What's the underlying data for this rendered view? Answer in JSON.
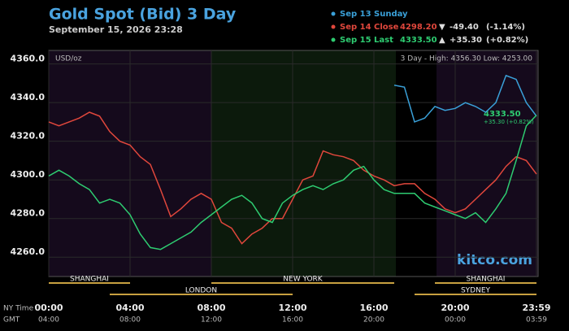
{
  "chart_data": {
    "type": "line",
    "title": "Gold Spot (Bid) 3 Day",
    "subtitle": "September 15, 2026 23:28",
    "unit": "USD/oz",
    "high_low": "3 Day - High: 4356.30  Low: 4253.00",
    "watermark": "kitco.com",
    "x_row_labels": [
      "NY Time",
      "GMT"
    ],
    "annotations": [
      "4333.50",
      "+35.30 (+0.82%)"
    ],
    "x": [
      0,
      0.5,
      1,
      1.5,
      2,
      2.5,
      3,
      3.5,
      4,
      4.5,
      5,
      5.5,
      6,
      6.5,
      7,
      7.5,
      8,
      8.5,
      9,
      9.5,
      10,
      10.5,
      11,
      11.5,
      12,
      12.5,
      13,
      13.5,
      14,
      14.5,
      15,
      15.5,
      16,
      16.5,
      17,
      17.5,
      18,
      18.5,
      19,
      19.5,
      20,
      20.5,
      21,
      21.5,
      22,
      22.5,
      23,
      23.5,
      24
    ],
    "xlim": [
      0,
      24
    ],
    "xticks": [
      {
        "value": 0,
        "label": "00:00"
      },
      {
        "value": 4,
        "label": "04:00"
      },
      {
        "value": 8,
        "label": "08:00"
      },
      {
        "value": 12,
        "label": "12:00"
      },
      {
        "value": 16,
        "label": "16:00"
      },
      {
        "value": 20,
        "label": "20:00"
      },
      {
        "value": 24,
        "label": "23:59"
      }
    ],
    "gmt_labels": [
      "04:00",
      "08:00",
      "12:00",
      "16:00",
      "20:00",
      "00:00",
      "03:59"
    ],
    "ylim": [
      4250,
      4367
    ],
    "yticks": [
      {
        "value": 4260,
        "label": "4260.0"
      },
      {
        "value": 4280,
        "label": "4280.0"
      },
      {
        "value": 4300,
        "label": "4300.0"
      },
      {
        "value": 4320,
        "label": "4320.0"
      },
      {
        "value": 4340,
        "label": "4340.0"
      },
      {
        "value": 4360,
        "label": "4360.0"
      }
    ],
    "grid": true,
    "sessions": [
      {
        "name": "SHANGHAI",
        "start": 0,
        "end": 4
      },
      {
        "name": "LONDON",
        "start": 3,
        "end": 12
      },
      {
        "name": "NEW YORK",
        "start": 8,
        "end": 17
      },
      {
        "name": "SHANGHAI",
        "start": 19,
        "end": 24
      },
      {
        "name": "SYDNEY",
        "start": 18,
        "end": 24
      }
    ],
    "series": [
      {
        "name": "Sep 13 Sunday",
        "color": "#3aa0d8",
        "legend_extra": [],
        "values": [
          null,
          null,
          null,
          null,
          null,
          null,
          null,
          null,
          null,
          null,
          null,
          null,
          null,
          null,
          null,
          null,
          null,
          null,
          null,
          null,
          null,
          null,
          null,
          null,
          null,
          null,
          null,
          null,
          null,
          null,
          null,
          null,
          null,
          null,
          4349,
          4348,
          4330,
          4332,
          4338,
          4336,
          4337,
          4340,
          4338,
          4335,
          4340,
          4354,
          4352,
          4340,
          4333
        ]
      },
      {
        "name": "Sep 14 Close",
        "color": "#e0473c",
        "legend_extra": [
          "4298.20",
          "▼",
          "-49.40",
          "(-1.14%)"
        ],
        "values": [
          4330,
          4328,
          4330,
          4332,
          4335,
          4333,
          4325,
          4320,
          4318,
          4312,
          4308,
          4295,
          4281,
          4285,
          4290,
          4293,
          4290,
          4278,
          4275,
          4267,
          4272,
          4275,
          4280,
          4280,
          4290,
          4300,
          4302,
          4315,
          4313,
          4312,
          4310,
          4305,
          4302,
          4300,
          4297,
          4298,
          4298,
          4293,
          4290,
          4285,
          4283,
          4285,
          4290,
          4295,
          4300,
          4307,
          4312,
          4310,
          4303
        ]
      },
      {
        "name": "Sep 15 Last",
        "color": "#2ecc71",
        "legend_extra": [
          "4333.50",
          "▲",
          "+35.30",
          "(+0.82%)"
        ],
        "values": [
          4302,
          4305,
          4302,
          4298,
          4295,
          4288,
          4290,
          4288,
          4282,
          4272,
          4265,
          4264,
          4267,
          4270,
          4273,
          4278,
          4282,
          4286,
          4290,
          4292,
          4288,
          4280,
          4278,
          4288,
          4292,
          4295,
          4297,
          4295,
          4298,
          4300,
          4305,
          4307,
          4300,
          4295,
          4293,
          4293,
          4293,
          4288,
          4286,
          4284,
          4282,
          4280,
          4283,
          4278,
          4285,
          4293,
          4310,
          4328,
          4333.5
        ]
      }
    ]
  }
}
